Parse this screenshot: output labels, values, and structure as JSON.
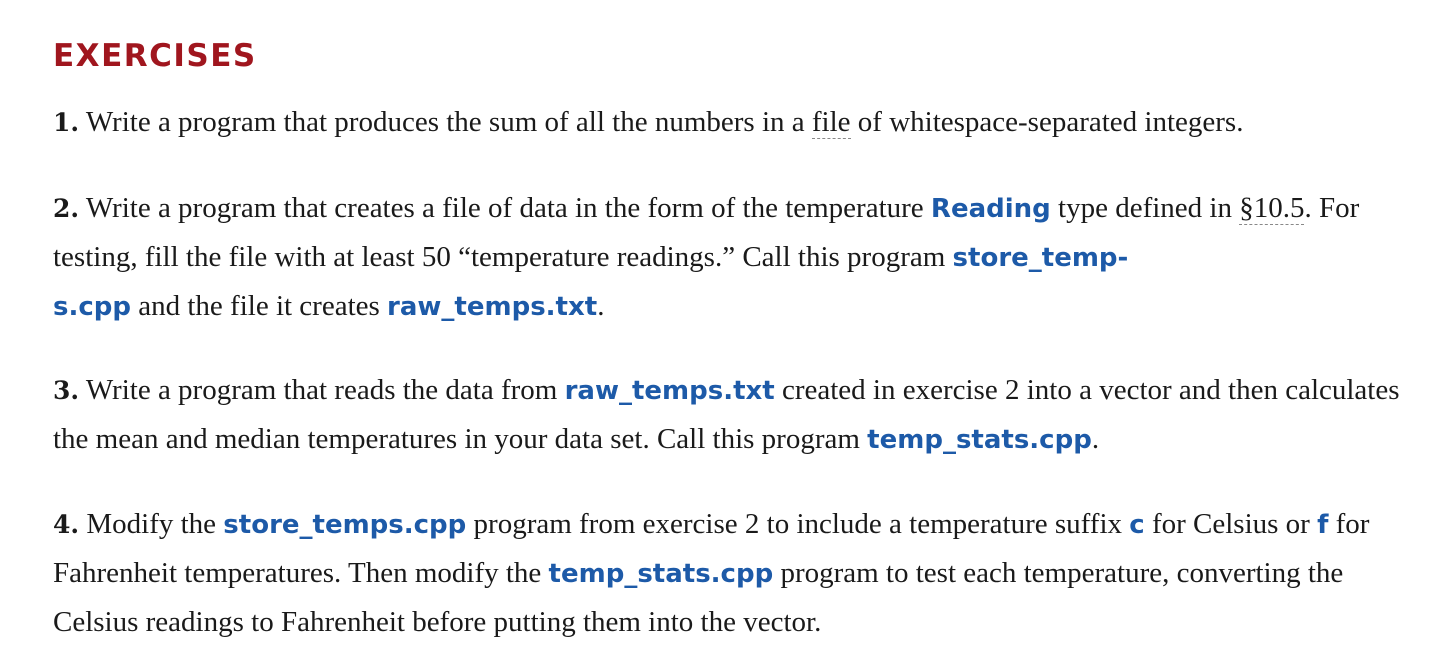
{
  "section": {
    "heading": "EXERCISES",
    "heading_color": "#a0161e",
    "code_color": "#1d5aa8"
  },
  "exercises": [
    {
      "number": "1.",
      "t1": " Write a program that produces the sum of all the numbers in a ",
      "term": "file",
      "t2": " of whitespace-separated integers."
    },
    {
      "number": "2.",
      "t1": " Write a program that creates a file of data in the form of the temperature ",
      "code1": "Reading",
      "t2": " type defined in ",
      "ref": "§10.5",
      "t3": ". For testing, fill the file with at least 50 “temperature readings.” Call this program ",
      "code2a": "store_temp-",
      "code2b": "s.cpp",
      "t4": " and the file it creates ",
      "code3": "raw_temps.txt",
      "t5": "."
    },
    {
      "number": "3.",
      "t1": " Write a program that reads the data from ",
      "code1": "raw_temps.txt",
      "t2": " created in exercise 2 into a vector and then calculates the mean and median temperatures in your data set. Call this program ",
      "code2": "temp_stats.cpp",
      "t3": "."
    },
    {
      "number": "4.",
      "t1": " Modify the ",
      "code1": "store_temps.cpp",
      "t2": " program from exercise 2 to include a temperature suffix ",
      "code2": "c",
      "t3": " for Celsius or ",
      "code3": "f",
      "t4": " for Fahrenheit temperatures. Then modify the ",
      "code4": "temp_stats.cpp",
      "t5": " program to test each temperature, converting the Celsius readings to Fahrenheit before putting them into the vector."
    }
  ]
}
